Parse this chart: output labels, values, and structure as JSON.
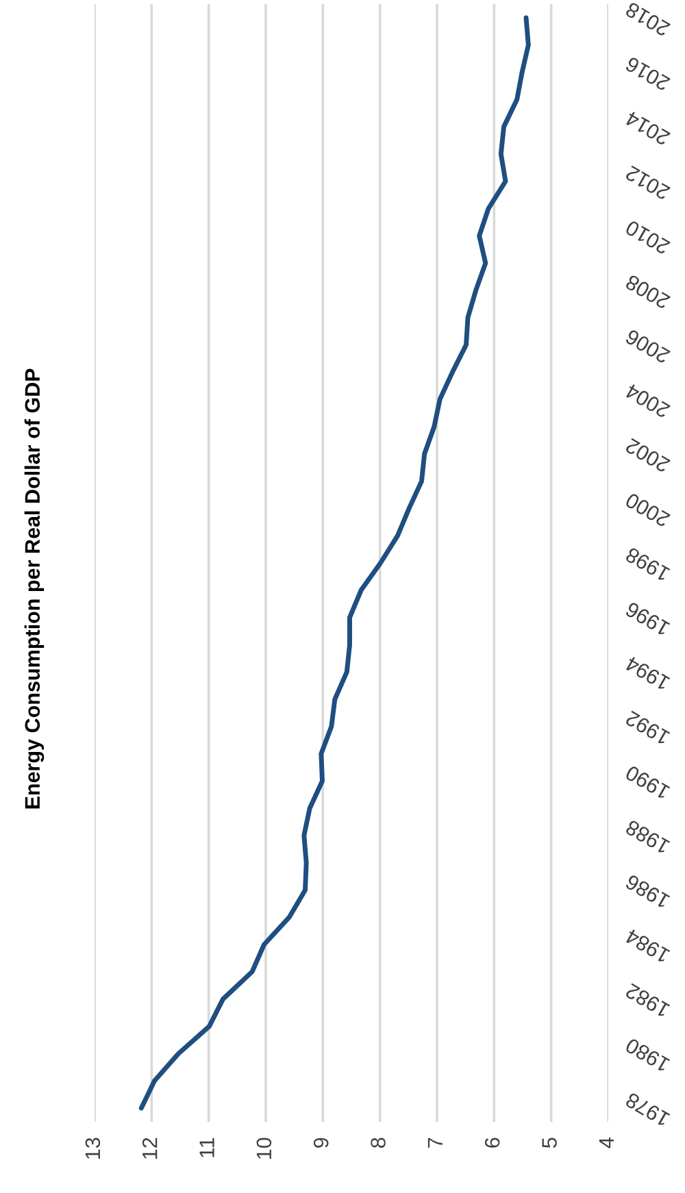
{
  "chart_data": {
    "type": "line",
    "title": "Energy Consumption per Real Dollar of GDP",
    "x": [
      1978,
      1979,
      1980,
      1981,
      1982,
      1983,
      1984,
      1985,
      1986,
      1987,
      1988,
      1989,
      1990,
      1991,
      1992,
      1993,
      1994,
      1995,
      1996,
      1997,
      1998,
      1999,
      2000,
      2001,
      2002,
      2003,
      2004,
      2005,
      2006,
      2007,
      2008,
      2009,
      2010,
      2011,
      2012,
      2013,
      2014,
      2015,
      2016,
      2017,
      2018
    ],
    "series": [
      {
        "color": "#1f4e80",
        "values": [
          12.18,
          11.95,
          11.53,
          10.99,
          10.75,
          10.24,
          10.03,
          9.59,
          9.31,
          9.29,
          9.33,
          9.23,
          9.01,
          9.03,
          8.85,
          8.79,
          8.58,
          8.53,
          8.53,
          8.33,
          7.99,
          7.69,
          7.49,
          7.27,
          7.22,
          7.05,
          6.95,
          6.73,
          6.49,
          6.46,
          6.32,
          6.15,
          6.26,
          6.1,
          5.8,
          5.88,
          5.83,
          5.6,
          5.51,
          5.4,
          5.44
        ]
      }
    ],
    "orientation": "horizontal",
    "ylim": [
      1977.5,
      2018.5
    ],
    "yticks": [
      1978,
      1980,
      1982,
      1984,
      1986,
      1988,
      1990,
      1992,
      1994,
      1996,
      1998,
      2000,
      2002,
      2004,
      2006,
      2008,
      2010,
      2012,
      2014,
      2016,
      2018
    ],
    "xlim": [
      13,
      4
    ],
    "xticks": [
      13,
      12,
      11,
      10,
      9,
      8,
      7,
      6,
      5,
      4
    ],
    "grid": "x"
  }
}
